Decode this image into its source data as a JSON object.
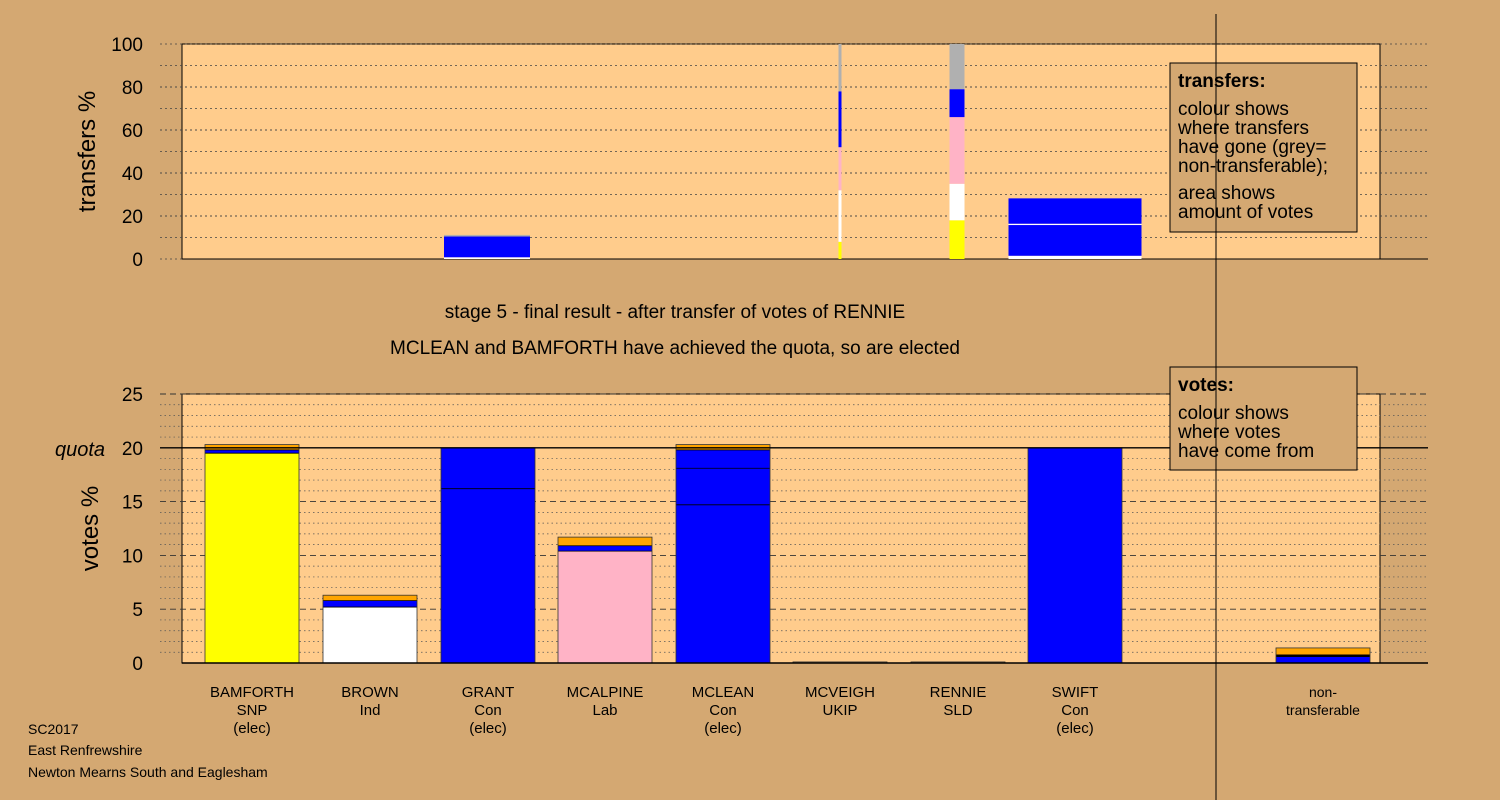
{
  "footer": {
    "line1": "SC2017",
    "line2": "East Renfrewshire",
    "line3": "Newton Mearns South and Eaglesham"
  },
  "colors": {
    "background": "#d4a872",
    "plot_bg": "#ffcc8c",
    "SNP": "#ffff00",
    "Ind": "#ffffff",
    "Con": "#0000ff",
    "Lab": "#ffb3c6",
    "SLD": "#ffa500",
    "non_transferable": "#b0b0b0"
  },
  "chart_data": [
    {
      "type": "bar",
      "title": "",
      "ylabel": "transfers %",
      "ylim": [
        0,
        100
      ],
      "yticks": [
        0,
        20,
        40,
        60,
        80,
        100
      ],
      "legend": {
        "title": "transfers:",
        "lines": [
          "colour shows",
          "where transfers",
          "have gone (grey=",
          "non-transferable);",
          "area shows",
          "amount of votes"
        ],
        "placement": "top-right"
      },
      "bars": [
        {
          "category": "GRANT",
          "segments": [
            {
              "from": 0,
              "to": 0.8,
              "color": "#ffffff"
            },
            {
              "from": 0.8,
              "to": 10.5,
              "color": "#0000ff"
            },
            {
              "from": 10.5,
              "to": 11.2,
              "color": "#b0b0b0"
            }
          ]
        },
        {
          "category": "MCLEAN",
          "segments": [
            {
              "from": 0,
              "to": 8,
              "color": "#ffff00"
            },
            {
              "from": 8,
              "to": 32,
              "color": "#ffffff"
            },
            {
              "from": 32,
              "to": 52,
              "color": "#ffb3c6"
            },
            {
              "from": 52,
              "to": 78,
              "color": "#0000ff"
            },
            {
              "from": 78,
              "to": 100,
              "color": "#b0b0b0"
            }
          ]
        },
        {
          "category": "RENNIE",
          "segments": [
            {
              "from": 0,
              "to": 18,
              "color": "#ffff00"
            },
            {
              "from": 18,
              "to": 35,
              "color": "#ffffff"
            },
            {
              "from": 35,
              "to": 66,
              "color": "#ffb3c6"
            },
            {
              "from": 66,
              "to": 79,
              "color": "#0000ff"
            },
            {
              "from": 79,
              "to": 100,
              "color": "#b0b0b0"
            }
          ]
        },
        {
          "category": "SWIFT",
          "segments": [
            {
              "from": 0,
              "to": 1.5,
              "color": "#ffffff"
            },
            {
              "from": 1.5,
              "to": 15.8,
              "color": "#0000ff"
            },
            {
              "from": 15.8,
              "to": 16.4,
              "color": "#ffffff"
            },
            {
              "from": 16.4,
              "to": 28.2,
              "color": "#0000ff"
            }
          ]
        }
      ]
    },
    {
      "type": "bar",
      "title": "stage 5 - final result - after transfer of votes of RENNIE",
      "subtitle": "MCLEAN and BAMFORTH have achieved the quota, so are elected",
      "ylabel": "votes %",
      "ylim": [
        0,
        25
      ],
      "yticks": [
        0,
        5,
        10,
        15,
        20,
        25
      ],
      "quota": 20,
      "quota_label": "quota",
      "legend": {
        "title": "votes:",
        "lines": [
          "colour shows",
          "where votes",
          "have come from"
        ],
        "placement": "top-right"
      },
      "categories": [
        {
          "name": "BAMFORTH",
          "party": "SNP",
          "status": "(elec)"
        },
        {
          "name": "BROWN",
          "party": "Ind",
          "status": ""
        },
        {
          "name": "GRANT",
          "party": "Con",
          "status": "(elec)"
        },
        {
          "name": "MCALPINE",
          "party": "Lab",
          "status": ""
        },
        {
          "name": "MCLEAN",
          "party": "Con",
          "status": "(elec)"
        },
        {
          "name": "MCVEIGH",
          "party": "UKIP",
          "status": ""
        },
        {
          "name": "RENNIE",
          "party": "SLD",
          "status": ""
        },
        {
          "name": "SWIFT",
          "party": "Con",
          "status": "(elec)"
        },
        {
          "name": "",
          "party": "",
          "status": ""
        },
        {
          "name": "non-",
          "party": "transferable",
          "status": ""
        }
      ],
      "bars": [
        {
          "category": "BAMFORTH",
          "segments": [
            {
              "from": 0,
              "to": 19.5,
              "color": "#ffff00"
            },
            {
              "from": 19.5,
              "to": 19.8,
              "color": "#0000ff"
            },
            {
              "from": 19.8,
              "to": 20.3,
              "color": "#ffa500"
            }
          ]
        },
        {
          "category": "BROWN",
          "segments": [
            {
              "from": 0,
              "to": 5.2,
              "color": "#ffffff"
            },
            {
              "from": 5.2,
              "to": 5.8,
              "color": "#0000ff"
            },
            {
              "from": 5.8,
              "to": 6.3,
              "color": "#ffa500"
            }
          ]
        },
        {
          "category": "GRANT",
          "segments": [
            {
              "from": 0,
              "to": 16.2,
              "color": "#0000ff"
            },
            {
              "from": 16.2,
              "to": 20.0,
              "color": "#0000ff"
            }
          ]
        },
        {
          "category": "MCALPINE",
          "segments": [
            {
              "from": 0,
              "to": 10.4,
              "color": "#ffb3c6"
            },
            {
              "from": 10.4,
              "to": 10.9,
              "color": "#0000ff"
            },
            {
              "from": 10.9,
              "to": 11.7,
              "color": "#ffa500"
            }
          ]
        },
        {
          "category": "MCLEAN",
          "segments": [
            {
              "from": 0,
              "to": 14.7,
              "color": "#0000ff"
            },
            {
              "from": 14.7,
              "to": 18.1,
              "color": "#0000ff"
            },
            {
              "from": 18.1,
              "to": 19.8,
              "color": "#0000ff"
            },
            {
              "from": 19.8,
              "to": 20.3,
              "color": "#ffa500"
            }
          ]
        },
        {
          "category": "MCVEIGH",
          "segments": [
            {
              "from": 0,
              "to": 0.1,
              "color": "#ffcc8c"
            }
          ]
        },
        {
          "category": "RENNIE",
          "segments": [
            {
              "from": 0,
              "to": 0.1,
              "color": "#ffcc8c"
            }
          ]
        },
        {
          "category": "SWIFT",
          "segments": [
            {
              "from": 0,
              "to": 20.0,
              "color": "#0000ff"
            }
          ]
        },
        {
          "category": "",
          "segments": []
        },
        {
          "category": "non-transferable",
          "segments": [
            {
              "from": 0,
              "to": 0.6,
              "color": "#0000ff"
            },
            {
              "from": 0.6,
              "to": 0.75,
              "color": "#000000"
            },
            {
              "from": 0.75,
              "to": 1.4,
              "color": "#ffa500"
            }
          ]
        }
      ]
    }
  ]
}
